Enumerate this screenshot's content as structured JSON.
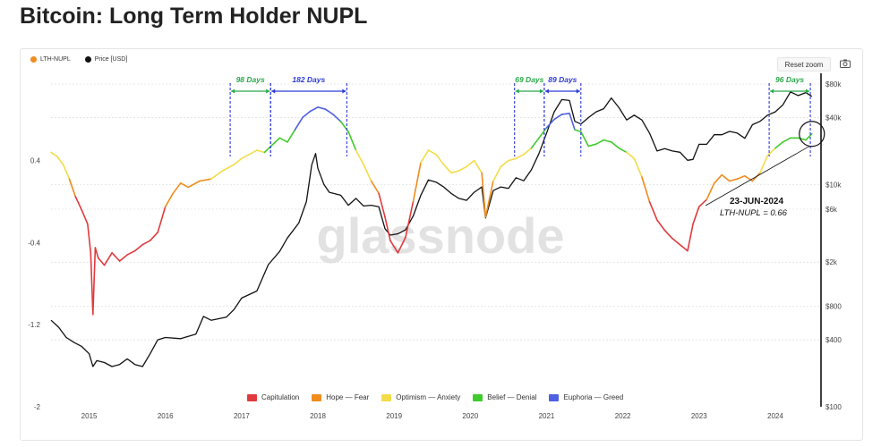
{
  "page_title": "Bitcoin: Long Term Holder NUPL",
  "toolbar": {
    "reset_zoom": "Reset zoom"
  },
  "icons": {
    "camera": "camera-icon"
  },
  "watermark": "glassnode",
  "colors": {
    "capitulation": "#e03a3e",
    "hope": "#f08c1e",
    "optimism": "#f2dc4a",
    "belief": "#3fcb2c",
    "euphoria": "#4f60e0",
    "price": "#111111",
    "green_annotation": "#2aa84a",
    "blue_annotation": "#2c3ad6"
  },
  "chart_data": {
    "type": "line",
    "title": "Bitcoin: Long Term Holder NUPL",
    "series": [
      {
        "name": "LTH-NUPL",
        "axis": "left",
        "x": [
          2014.5,
          2014.58,
          2014.66,
          2014.74,
          2014.82,
          2014.9,
          2014.98,
          2015.02,
          2015.05,
          2015.08,
          2015.12,
          2015.2,
          2015.3,
          2015.4,
          2015.5,
          2015.6,
          2015.7,
          2015.8,
          2015.9,
          2016.0,
          2016.1,
          2016.2,
          2016.3,
          2016.45,
          2016.6,
          2016.75,
          2016.9,
          2017.0,
          2017.1,
          2017.2,
          2017.3,
          2017.4,
          2017.5,
          2017.6,
          2017.7,
          2017.8,
          2017.9,
          2018.0,
          2018.1,
          2018.2,
          2018.3,
          2018.4,
          2018.5,
          2018.6,
          2018.7,
          2018.8,
          2018.88,
          2018.95,
          2019.05,
          2019.15,
          2019.25,
          2019.35,
          2019.45,
          2019.55,
          2019.65,
          2019.75,
          2019.85,
          2019.95,
          2020.05,
          2020.15,
          2020.2,
          2020.3,
          2020.4,
          2020.5,
          2020.6,
          2020.7,
          2020.8,
          2020.9,
          2021.0,
          2021.1,
          2021.2,
          2021.3,
          2021.37,
          2021.45,
          2021.55,
          2021.65,
          2021.75,
          2021.85,
          2021.95,
          2022.05,
          2022.15,
          2022.25,
          2022.35,
          2022.45,
          2022.55,
          2022.65,
          2022.75,
          2022.85,
          2022.92,
          2023.0,
          2023.1,
          2023.2,
          2023.3,
          2023.4,
          2023.5,
          2023.6,
          2023.7,
          2023.8,
          2023.9,
          2024.0,
          2024.1,
          2024.2,
          2024.3,
          2024.4,
          2024.48
        ],
        "values": [
          0.48,
          0.44,
          0.36,
          0.22,
          0.05,
          -0.08,
          -0.22,
          -0.5,
          -1.1,
          -0.45,
          -0.55,
          -0.62,
          -0.5,
          -0.58,
          -0.52,
          -0.48,
          -0.42,
          -0.38,
          -0.3,
          -0.05,
          0.08,
          0.18,
          0.14,
          0.2,
          0.22,
          0.3,
          0.36,
          0.42,
          0.46,
          0.5,
          0.48,
          0.55,
          0.62,
          0.58,
          0.7,
          0.82,
          0.88,
          0.92,
          0.9,
          0.85,
          0.78,
          0.68,
          0.5,
          0.36,
          0.2,
          0.08,
          -0.15,
          -0.38,
          -0.5,
          -0.35,
          0.0,
          0.38,
          0.5,
          0.46,
          0.36,
          0.28,
          0.3,
          0.34,
          0.4,
          0.28,
          -0.15,
          0.2,
          0.34,
          0.4,
          0.42,
          0.46,
          0.52,
          0.62,
          0.72,
          0.8,
          0.85,
          0.86,
          0.7,
          0.68,
          0.54,
          0.56,
          0.6,
          0.58,
          0.52,
          0.48,
          0.42,
          0.24,
          0.0,
          -0.18,
          -0.28,
          -0.36,
          -0.42,
          -0.48,
          -0.22,
          -0.05,
          0.02,
          0.18,
          0.26,
          0.2,
          0.22,
          0.25,
          0.2,
          0.28,
          0.45,
          0.52,
          0.58,
          0.62,
          0.62,
          0.6,
          0.66
        ]
      },
      {
        "name": "Price [USD]",
        "axis": "right",
        "x": [
          2014.5,
          2014.6,
          2014.7,
          2014.8,
          2014.9,
          2015.0,
          2015.05,
          2015.1,
          2015.2,
          2015.3,
          2015.4,
          2015.5,
          2015.6,
          2015.7,
          2015.8,
          2015.9,
          2016.0,
          2016.2,
          2016.4,
          2016.5,
          2016.6,
          2016.8,
          2016.9,
          2017.0,
          2017.2,
          2017.35,
          2017.5,
          2017.6,
          2017.75,
          2017.85,
          2017.92,
          2017.97,
          2018.0,
          2018.08,
          2018.15,
          2018.3,
          2018.4,
          2018.5,
          2018.6,
          2018.7,
          2018.8,
          2018.88,
          2018.95,
          2019.05,
          2019.15,
          2019.25,
          2019.35,
          2019.45,
          2019.55,
          2019.65,
          2019.75,
          2019.85,
          2019.95,
          2020.05,
          2020.15,
          2020.2,
          2020.3,
          2020.4,
          2020.5,
          2020.6,
          2020.7,
          2020.8,
          2020.9,
          2021.0,
          2021.1,
          2021.2,
          2021.3,
          2021.37,
          2021.45,
          2021.55,
          2021.65,
          2021.75,
          2021.85,
          2021.95,
          2022.05,
          2022.15,
          2022.25,
          2022.35,
          2022.45,
          2022.55,
          2022.65,
          2022.75,
          2022.85,
          2022.92,
          2023.0,
          2023.1,
          2023.2,
          2023.3,
          2023.4,
          2023.5,
          2023.6,
          2023.7,
          2023.8,
          2023.9,
          2024.0,
          2024.1,
          2024.2,
          2024.3,
          2024.4,
          2024.48
        ],
        "values": [
          600,
          520,
          420,
          380,
          350,
          300,
          230,
          260,
          250,
          230,
          240,
          270,
          240,
          230,
          300,
          400,
          420,
          410,
          450,
          650,
          600,
          640,
          750,
          950,
          1100,
          1900,
          2500,
          3300,
          4500,
          7000,
          15000,
          19000,
          14000,
          10000,
          8500,
          8000,
          6500,
          7500,
          6400,
          6500,
          6300,
          4000,
          3500,
          3600,
          3900,
          5200,
          8000,
          11000,
          10500,
          9500,
          8300,
          7500,
          7200,
          8500,
          9500,
          5000,
          8800,
          9500,
          9200,
          11500,
          10800,
          13500,
          19000,
          29000,
          45000,
          58000,
          57000,
          37000,
          35000,
          40000,
          45000,
          48000,
          60000,
          49000,
          38000,
          42000,
          38000,
          29000,
          20000,
          21000,
          20000,
          19500,
          16500,
          16800,
          23000,
          23000,
          28000,
          28000,
          30000,
          29000,
          26000,
          34500,
          37000,
          42000,
          45000,
          52000,
          68000,
          63000,
          67000,
          62000
        ]
      }
    ],
    "left_axis": {
      "ticks": [
        "0.4",
        "-0.4",
        "-1.2",
        "-2"
      ],
      "tick_values": [
        0.4,
        -0.4,
        -1.2,
        -2
      ],
      "range": [
        -2,
        1.25
      ]
    },
    "right_axis": {
      "scale": "log",
      "ticks": [
        "$80k",
        "$40k",
        "$10k",
        "$6k",
        "$2k",
        "$800",
        "$400",
        "$100"
      ],
      "tick_values": [
        80000,
        40000,
        10000,
        6000,
        2000,
        800,
        400,
        100
      ],
      "range": [
        100,
        100000
      ]
    },
    "x_axis": {
      "ticks": [
        "2015",
        "2016",
        "2017",
        "2018",
        "2019",
        "2020",
        "2021",
        "2022",
        "2023",
        "2024"
      ],
      "tick_values": [
        2015,
        2016,
        2017,
        2018,
        2019,
        2020,
        2021,
        2022,
        2023,
        2024
      ],
      "range": [
        2014.5,
        2024.6
      ]
    },
    "bands": [
      {
        "name": "Capitulation",
        "key": "capitulation",
        "max": 0.0
      },
      {
        "name": "Hope — Fear",
        "key": "hope",
        "max": 0.25
      },
      {
        "name": "Optimism — Anxiety",
        "key": "optimism",
        "max": 0.5
      },
      {
        "name": "Belief — Denial",
        "key": "belief",
        "max": 0.75
      },
      {
        "name": "Euphoria — Greed",
        "key": "euphoria",
        "max": 10
      }
    ],
    "grid": "horizontal",
    "legend": "top-left and bottom-center",
    "period_annotations": [
      {
        "label": "98 Days",
        "start": 2016.85,
        "end": 2017.38,
        "color_key": "green_annotation"
      },
      {
        "label": "182 Days",
        "start": 2017.38,
        "end": 2018.38,
        "color_key": "blue_annotation"
      },
      {
        "label": "69 Days",
        "start": 2020.58,
        "end": 2020.97,
        "color_key": "green_annotation"
      },
      {
        "label": "89 Days",
        "start": 2020.97,
        "end": 2021.45,
        "color_key": "blue_annotation"
      },
      {
        "label": "96 Days",
        "start": 2023.92,
        "end": 2024.46,
        "color_key": "green_annotation"
      }
    ],
    "callout": {
      "date": "23-JUN-2024",
      "text": "LTH-NUPL = 0.66",
      "x": 2024.48,
      "y": 0.66
    }
  }
}
